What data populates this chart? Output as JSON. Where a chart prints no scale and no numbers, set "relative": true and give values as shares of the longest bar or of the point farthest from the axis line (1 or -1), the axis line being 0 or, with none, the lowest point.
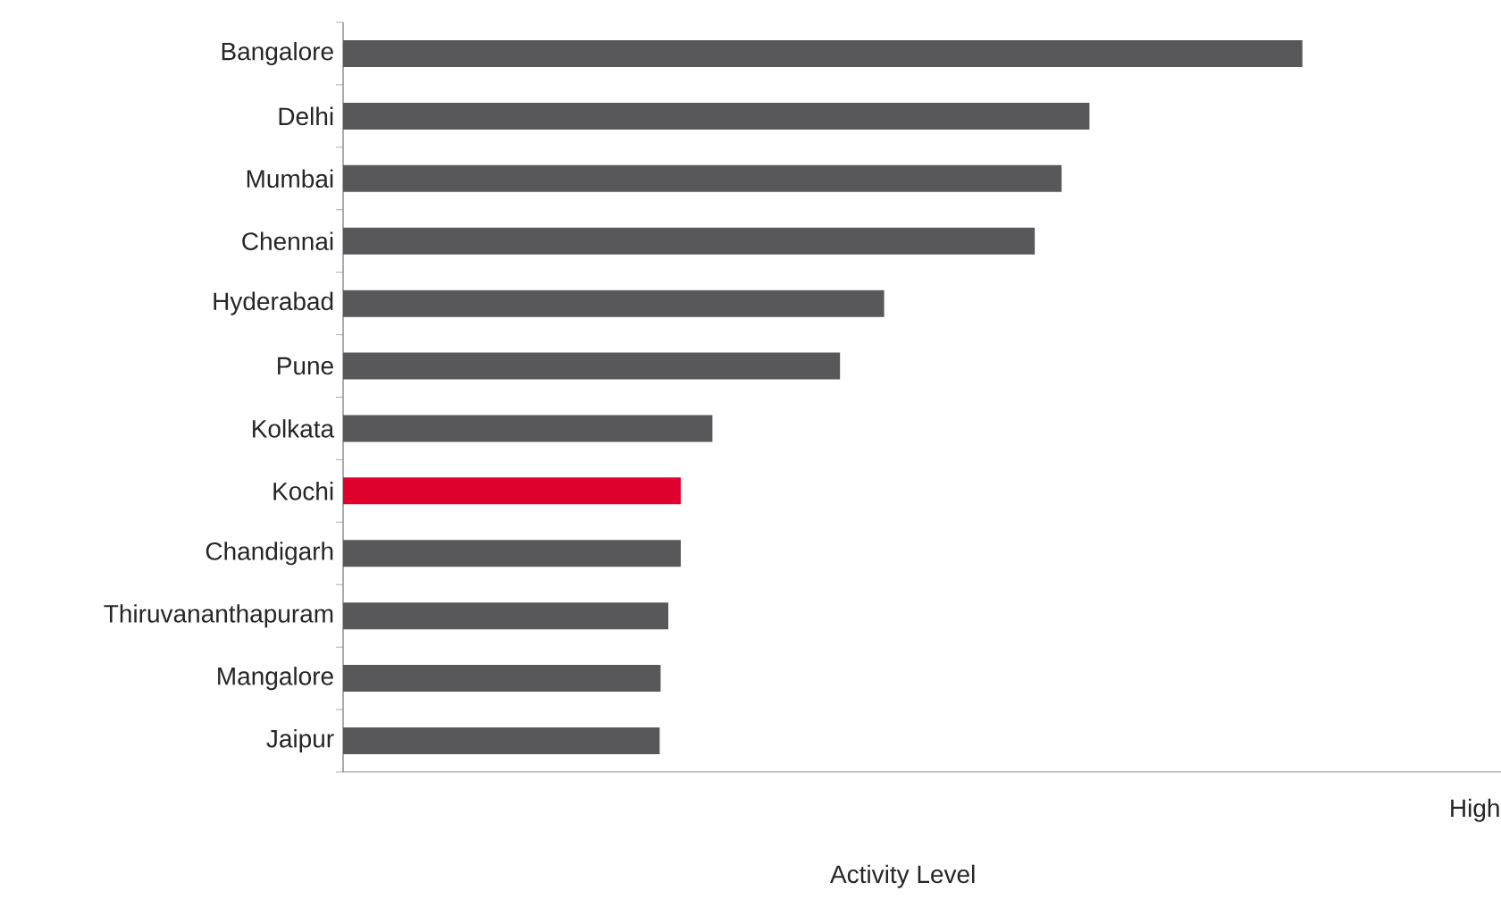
{
  "chart_data": {
    "type": "bar",
    "orientation": "horizontal",
    "relative": true,
    "xlabel": "Activity Level",
    "categories": [
      "Bangalore",
      "Delhi",
      "Mumbai",
      "Chennai",
      "Hyderabad",
      "Pune",
      "Kolkata",
      "Kochi",
      "Chandigarh",
      "Thiruvananthapuram",
      "Mangalore",
      "Jaipur"
    ],
    "values": [
      1,
      0.778,
      0.749,
      0.721,
      0.564,
      0.518,
      0.385,
      0.352,
      0.352,
      0.339,
      0.331,
      0.33
    ],
    "colors": [
      "#58585a",
      "#58585a",
      "#58585a",
      "#58585a",
      "#58585a",
      "#58585a",
      "#58585a",
      "#e0002e",
      "#58585a",
      "#58585a",
      "#58585a",
      "#58585a"
    ],
    "annotations": [
      "High"
    ]
  }
}
